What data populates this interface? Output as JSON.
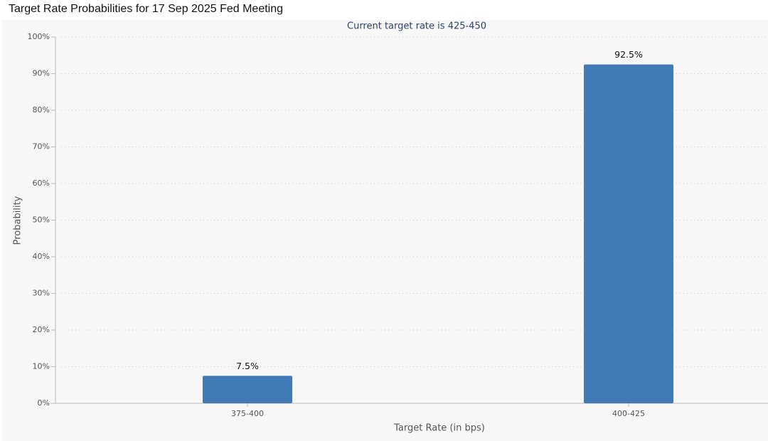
{
  "chart_data": {
    "type": "bar",
    "title": "Target Rate Probabilities for 17 Sep 2025 Fed Meeting",
    "subtitle": "Current target rate is 425-450",
    "x_label": "Target Rate (in bps)",
    "y_label": "Probability",
    "categories": [
      "375-400",
      "400-425"
    ],
    "values": [
      7.5,
      92.5
    ],
    "value_labels": [
      "7.5%",
      "92.5%"
    ],
    "color": "#417ab5",
    "ylim": [
      0,
      100
    ],
    "yticks": [
      {
        "value": 0,
        "label": "0%"
      },
      {
        "value": 10,
        "label": "10%"
      },
      {
        "value": 20,
        "label": "20%"
      },
      {
        "value": 30,
        "label": "30%"
      },
      {
        "value": 40,
        "label": "40%"
      },
      {
        "value": 50,
        "label": "50%"
      },
      {
        "value": 60,
        "label": "60%"
      },
      {
        "value": 70,
        "label": "70%"
      },
      {
        "value": 80,
        "label": "80%"
      },
      {
        "value": 90,
        "label": "90%"
      },
      {
        "value": 100,
        "label": "100%"
      }
    ],
    "grid": true
  }
}
